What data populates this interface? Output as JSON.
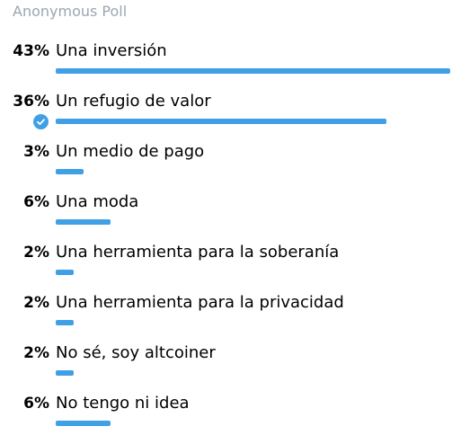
{
  "poll": {
    "header": "Anonymous Poll",
    "accent_color": "#3fa0e6",
    "options": [
      {
        "percent_label": "43%",
        "percent": 43,
        "label": "Una inversión",
        "voted": false
      },
      {
        "percent_label": "36%",
        "percent": 36,
        "label": "Un refugio de valor",
        "voted": true
      },
      {
        "percent_label": "3%",
        "percent": 3,
        "label": "Un medio de pago",
        "voted": false
      },
      {
        "percent_label": "6%",
        "percent": 6,
        "label": "Una moda",
        "voted": false
      },
      {
        "percent_label": "2%",
        "percent": 2,
        "label": "Una herramienta para la soberanía",
        "voted": false
      },
      {
        "percent_label": "2%",
        "percent": 2,
        "label": "Una herramienta para la privacidad",
        "voted": false
      },
      {
        "percent_label": "2%",
        "percent": 2,
        "label": "No sé, soy altcoiner",
        "voted": false
      },
      {
        "percent_label": "6%",
        "percent": 6,
        "label": "No tengo ni idea",
        "voted": false
      }
    ]
  }
}
